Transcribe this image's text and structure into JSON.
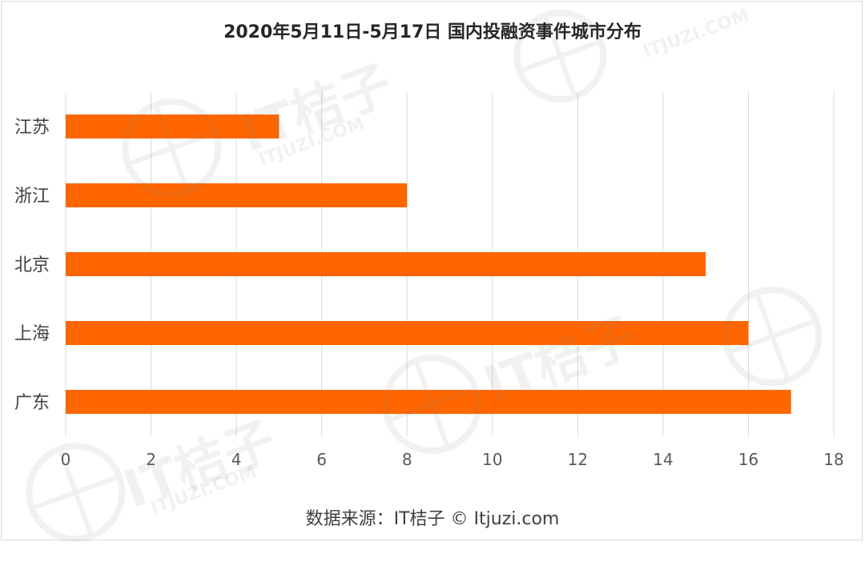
{
  "chart_data": {
    "type": "bar",
    "orientation": "horizontal",
    "title": "2020年5月11日-5月17日 国内投融资事件城市分布",
    "categories": [
      "江苏",
      "浙江",
      "北京",
      "上海",
      "广东"
    ],
    "values": [
      5,
      8,
      15,
      16,
      17
    ],
    "xlim": [
      0,
      18
    ],
    "xticks": [
      "0",
      "2",
      "4",
      "6",
      "8",
      "10",
      "12",
      "14",
      "16",
      "18"
    ],
    "grid": "vertical",
    "bar_color": "#ff6600",
    "grid_color": "#d9d9d9"
  },
  "source_text": "数据来源：IT桔子 © Itjuzi.com",
  "watermark": {
    "brand": "IT桔子",
    "domain": "ITJUZI.COM"
  }
}
